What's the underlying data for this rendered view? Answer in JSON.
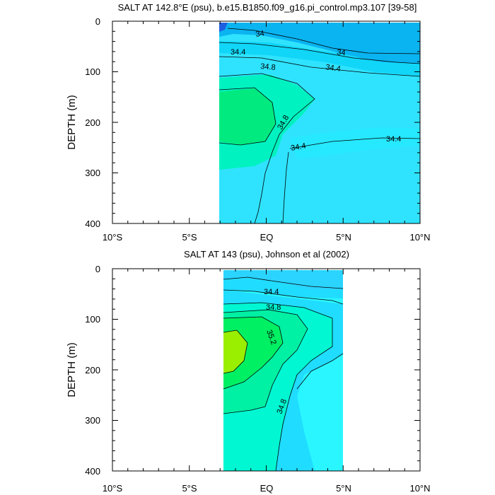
{
  "chart_data": [
    {
      "type": "contour",
      "title": "SALT AT 142.8°E (psu), b.e15.B1850.f09_g16.pi_control.mp3.107 [39-58]",
      "xlabel": "",
      "ylabel": "DEPTH (m)",
      "x_ticks": [
        "10°S",
        "5°S",
        "EQ",
        "5°N",
        "10°N"
      ],
      "x_range": [
        -10,
        10
      ],
      "y_ticks": [
        "0",
        "100",
        "200",
        "300",
        "400"
      ],
      "y_range": [
        0,
        400
      ],
      "y_reversed": true,
      "data_extent_x": [
        -3.1,
        10
      ],
      "data_extent_y": [
        5,
        400
      ],
      "contour_labels": [
        "34",
        "34",
        "34.4",
        "34.4",
        "34.8",
        "34.8",
        "34.4",
        "34.4"
      ],
      "colors": {
        "low": "#1e5fe0",
        "mid": "#0bb0f5",
        "high": "#28e7ff",
        "max": "#00ffc8"
      }
    },
    {
      "type": "contour",
      "title": "SALT AT 143 (psu), Johnson et al (2002)",
      "xlabel": "",
      "ylabel": "DEPTH (m)",
      "x_ticks": [
        "10°S",
        "5°S",
        "EQ",
        "5°N",
        "10°N"
      ],
      "x_range": [
        -10,
        10
      ],
      "y_ticks": [
        "0",
        "100",
        "200",
        "300",
        "400"
      ],
      "y_range": [
        0,
        400
      ],
      "y_reversed": true,
      "data_extent_x": [
        -2.8,
        5
      ],
      "data_extent_y": [
        5,
        400
      ],
      "contour_labels": [
        "34.4",
        "34.8",
        "35.2",
        "34.8"
      ],
      "colors": {
        "low": "#28d5ff",
        "mid": "#00ffc8",
        "high": "#00f000",
        "max": "#9aef00"
      }
    }
  ]
}
